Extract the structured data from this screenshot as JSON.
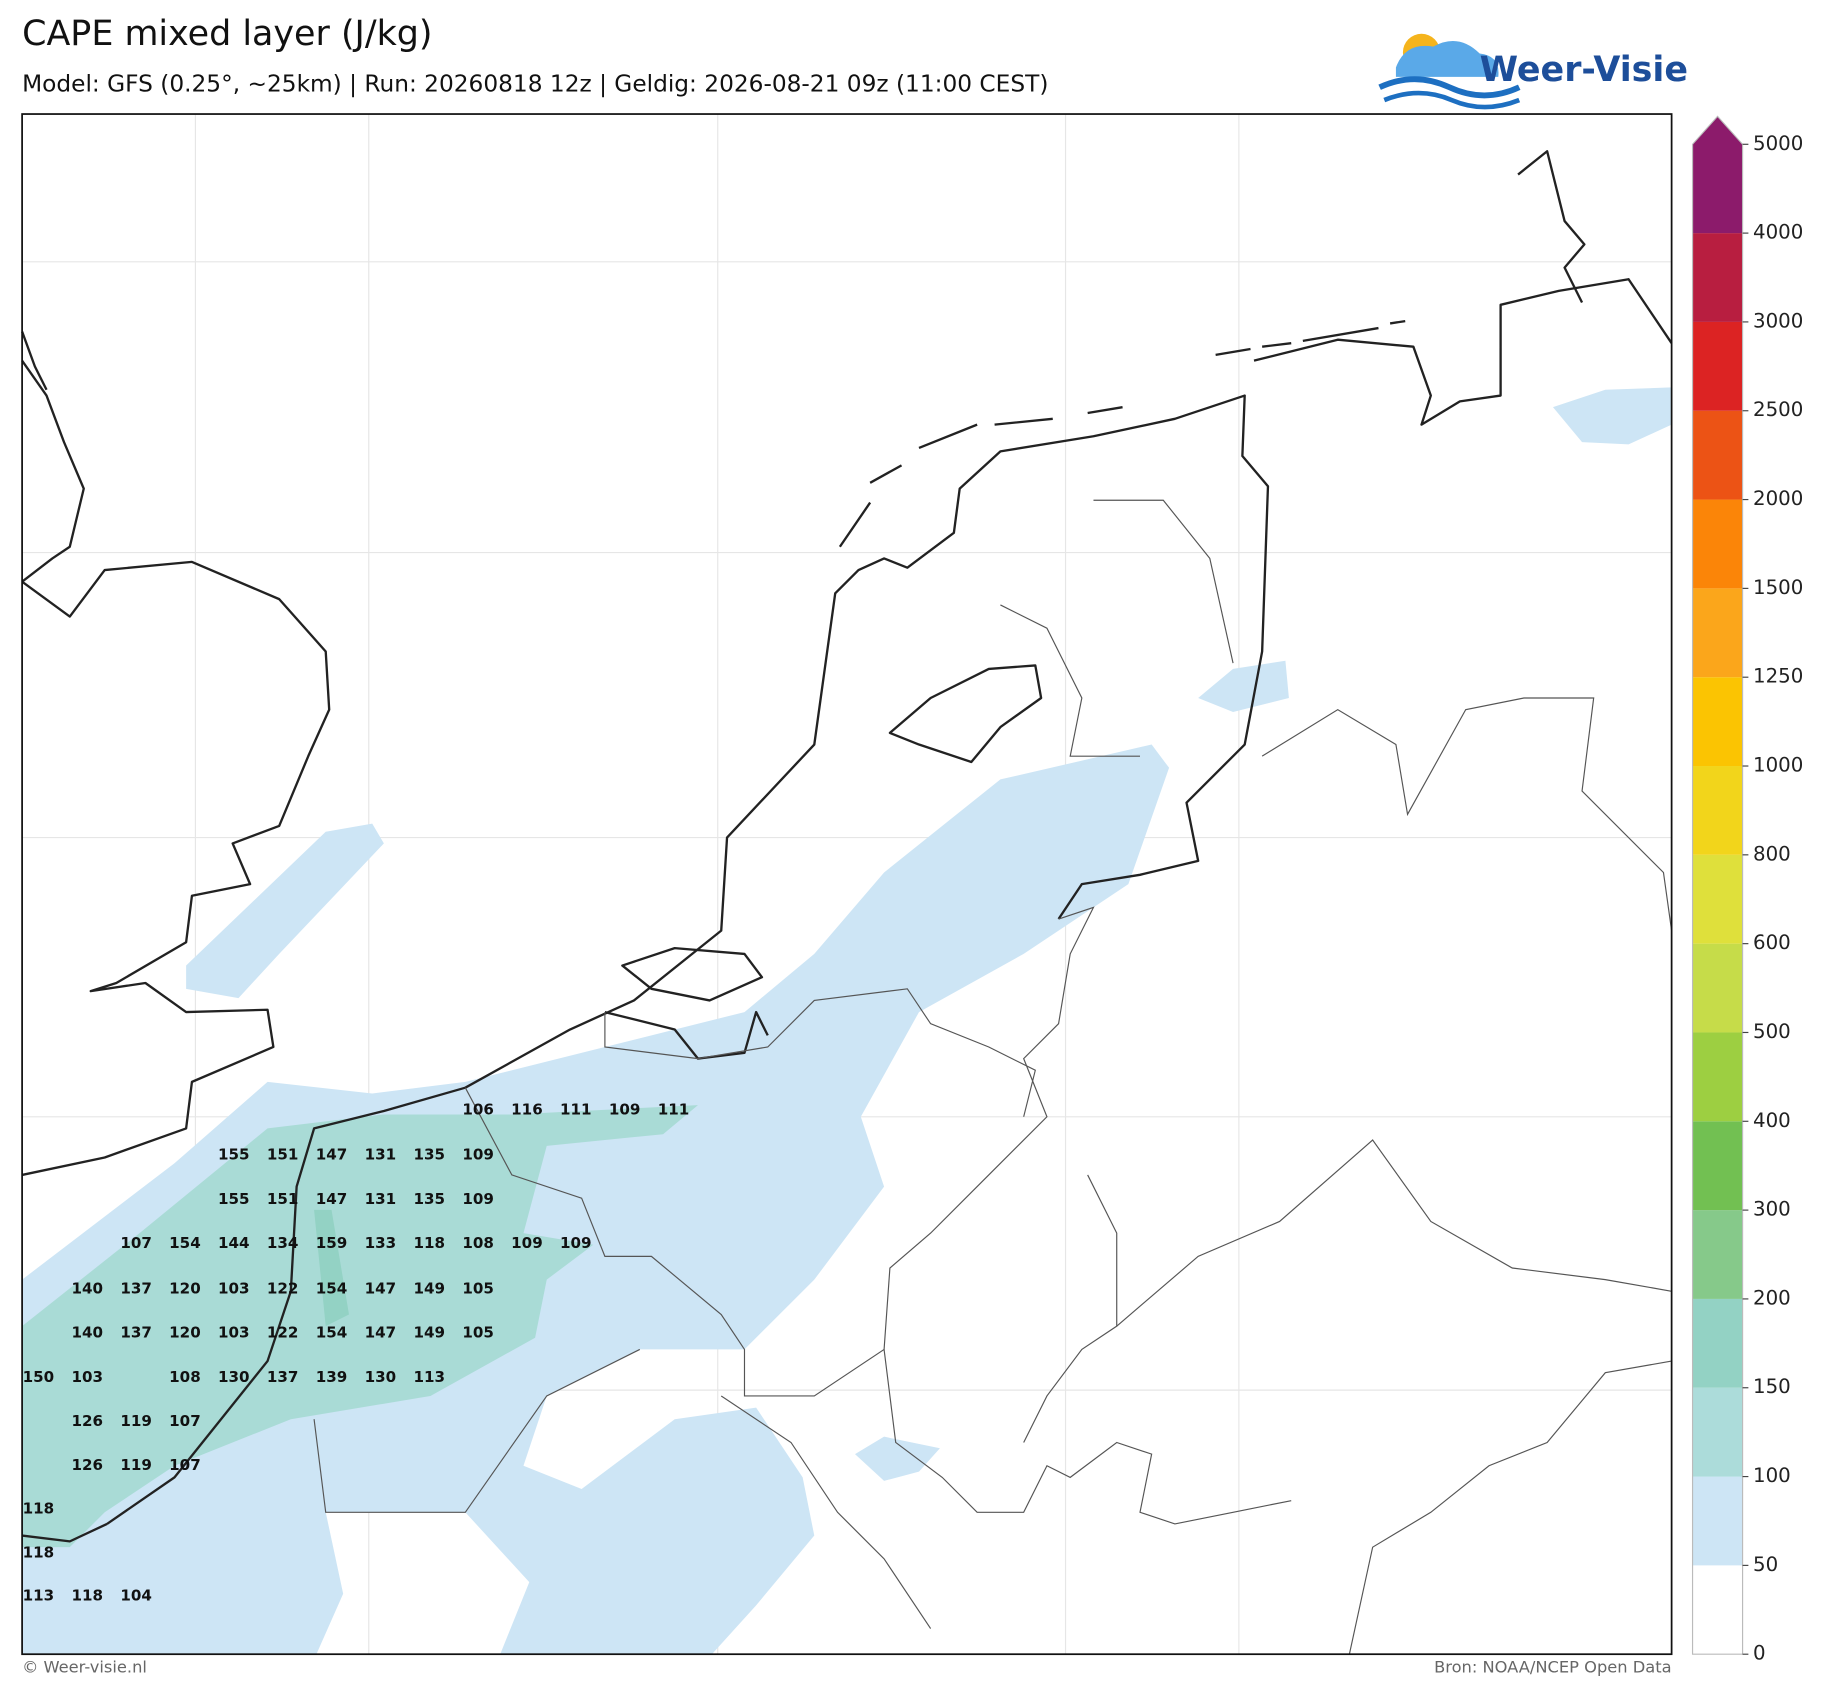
{
  "header": {
    "title": "CAPE mixed layer (J/kg)",
    "subtitle": "Model: GFS (0.25°, ~25km)  |  Run: 20260818 12z  |  Geldig: 2026-08-21 09z (11:00 CEST)"
  },
  "logo": {
    "text": "Weer-Visie"
  },
  "colorbar": {
    "ticks": [
      0,
      50,
      100,
      150,
      200,
      300,
      400,
      500,
      600,
      800,
      1000,
      1250,
      1500,
      2000,
      2500,
      3000,
      4000,
      5000
    ],
    "colors": [
      "#ffffff",
      "#cde5f5",
      "#acdcda",
      "#93d2c4",
      "#86c98a",
      "#72c052",
      "#9dcf41",
      "#c6dc49",
      "#dfe03b",
      "#f2d51b",
      "#fbc402",
      "#fba61b",
      "#fb8508",
      "#ec5315",
      "#dc2323",
      "#b81e40",
      "#8c1b6b"
    ]
  },
  "map": {
    "labels": [
      [
        106,
        116,
        111,
        109,
        111
      ],
      [
        155,
        151,
        147,
        131,
        135,
        109
      ],
      [
        155,
        151,
        147,
        131,
        135,
        109
      ],
      [
        107,
        154,
        144,
        134,
        159,
        133,
        118,
        108,
        109,
        109
      ],
      [
        140,
        137,
        120,
        103,
        122,
        154,
        147,
        149,
        105
      ],
      [
        140,
        137,
        120,
        103,
        122,
        154,
        147,
        149,
        105
      ],
      [
        150,
        103,
        108,
        130,
        137,
        139,
        130,
        113
      ],
      [
        126,
        119,
        107
      ],
      [
        126,
        119,
        107
      ],
      [
        118
      ],
      [
        118
      ],
      [
        113,
        118,
        104
      ]
    ]
  },
  "footer": {
    "left": "© Weer-visie.nl",
    "right": "Bron: NOAA/NCEP Open Data"
  }
}
